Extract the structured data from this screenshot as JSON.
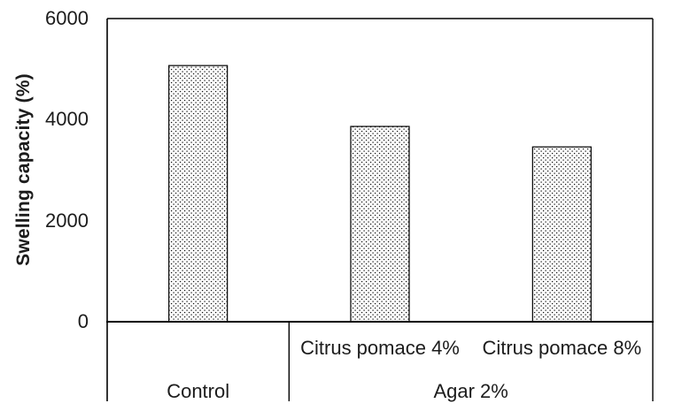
{
  "chart_data": {
    "type": "bar",
    "title": "",
    "ylabel": "Swelling capacity (%)",
    "xlabel": "",
    "ylim": [
      0,
      6000
    ],
    "yticks": [
      6000,
      4000,
      2000,
      0
    ],
    "grid": false,
    "legend": null,
    "bar_style": "white fill, black dotted pattern, thin black outline",
    "categories": [
      "Control",
      "Citrus pomace 4%",
      "Citrus pomace 8%"
    ],
    "values": [
      5070,
      3865,
      3460
    ],
    "groups": [
      {
        "label": "Control",
        "items": [
          {
            "label": "",
            "value": 5070
          }
        ]
      },
      {
        "label": "Agar 2%",
        "items": [
          {
            "label": "Citrus pomace 4%",
            "value": 3865
          },
          {
            "label": "Citrus pomace 8%",
            "value": 3460
          }
        ]
      }
    ]
  },
  "colors": {
    "axis_line": "#000000",
    "text": "#1c1c1c",
    "bar_fill": "#ffffff",
    "bar_dots": "#111111",
    "background": "#ffffff"
  }
}
